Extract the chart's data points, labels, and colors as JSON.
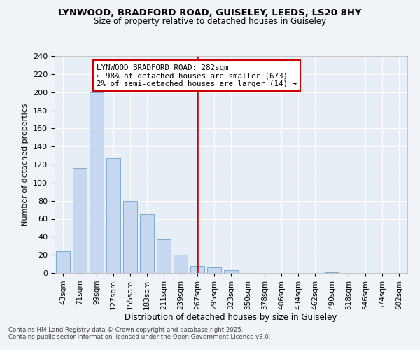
{
  "title_line1": "LYNWOOD, BRADFORD ROAD, GUISELEY, LEEDS, LS20 8HY",
  "title_line2": "Size of property relative to detached houses in Guiseley",
  "xlabel": "Distribution of detached houses by size in Guiseley",
  "ylabel": "Number of detached properties",
  "categories": [
    "43sqm",
    "71sqm",
    "99sqm",
    "127sqm",
    "155sqm",
    "183sqm",
    "211sqm",
    "239sqm",
    "267sqm",
    "295sqm",
    "323sqm",
    "350sqm",
    "378sqm",
    "406sqm",
    "434sqm",
    "462sqm",
    "490sqm",
    "518sqm",
    "546sqm",
    "574sqm",
    "602sqm"
  ],
  "values": [
    24,
    116,
    200,
    127,
    80,
    65,
    37,
    20,
    8,
    6,
    3,
    0,
    0,
    0,
    0,
    0,
    1,
    0,
    0,
    0,
    0
  ],
  "bar_color": "#c5d8f0",
  "bar_edge_color": "#7badd4",
  "vline_x_idx": 8,
  "vline_color": "#cc0000",
  "annotation_box_text": "LYNWOOD BRADFORD ROAD: 282sqm\n← 98% of detached houses are smaller (673)\n2% of semi-detached houses are larger (14) →",
  "annotation_box_color": "#cc0000",
  "annotation_box_fill": "#ffffff",
  "ylim": [
    0,
    240
  ],
  "yticks": [
    0,
    20,
    40,
    60,
    80,
    100,
    120,
    140,
    160,
    180,
    200,
    220,
    240
  ],
  "copyright_line1": "Contains HM Land Registry data © Crown copyright and database right 2025.",
  "copyright_line2": "Contains public sector information licensed under the Open Government Licence v3.0.",
  "bg_color": "#f0f4f8",
  "plot_bg_color": "#e8eef5",
  "grid_color": "#ffffff"
}
